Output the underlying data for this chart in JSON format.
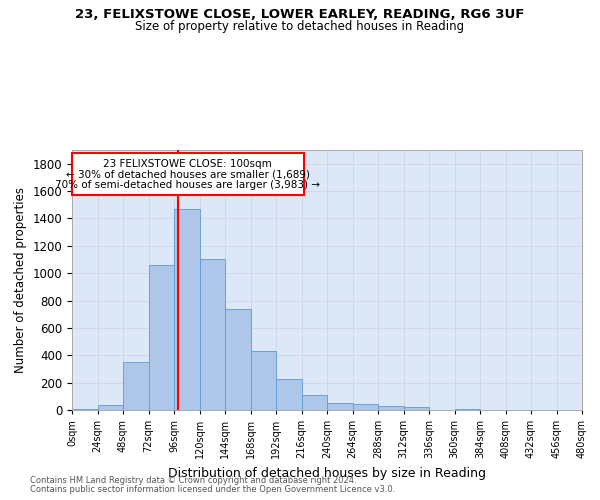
{
  "title_line1": "23, FELIXSTOWE CLOSE, LOWER EARLEY, READING, RG6 3UF",
  "title_line2": "Size of property relative to detached houses in Reading",
  "xlabel": "Distribution of detached houses by size in Reading",
  "ylabel": "Number of detached properties",
  "footnote1": "Contains HM Land Registry data © Crown copyright and database right 2024.",
  "footnote2": "Contains public sector information licensed under the Open Government Licence v3.0.",
  "bar_edges": [
    0,
    24,
    48,
    72,
    96,
    120,
    144,
    168,
    192,
    216,
    240,
    264,
    288,
    312,
    336,
    360,
    384,
    408,
    432,
    456,
    480
  ],
  "bar_heights": [
    10,
    35,
    350,
    1060,
    1470,
    1100,
    740,
    430,
    225,
    110,
    50,
    45,
    30,
    20,
    0,
    10,
    0,
    0,
    0,
    0
  ],
  "bar_color": "#aec6e8",
  "bar_edgecolor": "#5b9bd5",
  "grid_color": "#d0d8e8",
  "background_color": "#dce8f8",
  "vline_x": 100,
  "vline_color": "red",
  "ann_line1": "23 FELIXSTOWE CLOSE: 100sqm",
  "ann_line2": "← 30% of detached houses are smaller (1,689)",
  "ann_line3": "70% of semi-detached houses are larger (3,983) →",
  "ylim": [
    0,
    1900
  ],
  "xlim": [
    0,
    480
  ],
  "yticks": [
    0,
    200,
    400,
    600,
    800,
    1000,
    1200,
    1400,
    1600,
    1800
  ],
  "tick_interval": 24
}
